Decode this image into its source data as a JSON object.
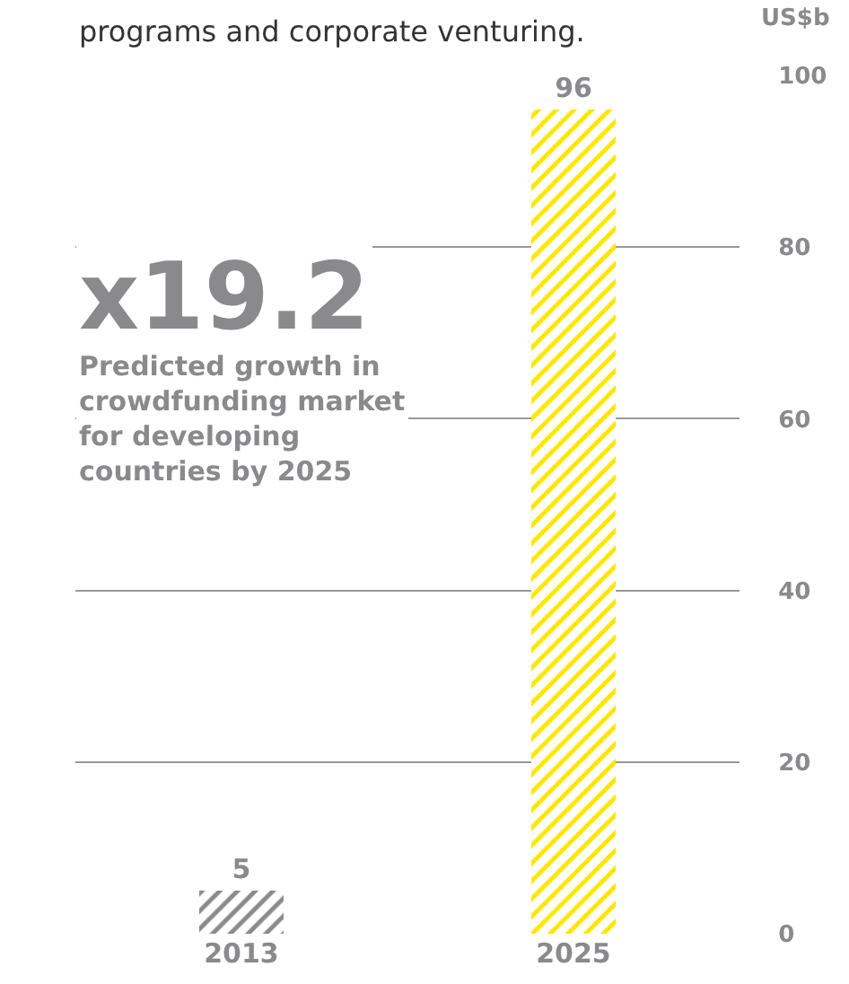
{
  "chart_data": {
    "type": "bar",
    "categories": [
      "2013",
      "2025"
    ],
    "values": [
      5,
      96
    ],
    "colors": [
      "#8a8a8d",
      "#ffe600"
    ],
    "ylabel": "US$b",
    "ylim": [
      0,
      100
    ],
    "yticks": [
      0,
      20,
      40,
      60,
      80,
      100
    ],
    "grid": "y",
    "data_labels": true,
    "annotations": [
      "programs and corporate venturing.",
      "x19.2",
      "Predicted growth in crowdfunding market for developing countries by 2025"
    ]
  }
}
